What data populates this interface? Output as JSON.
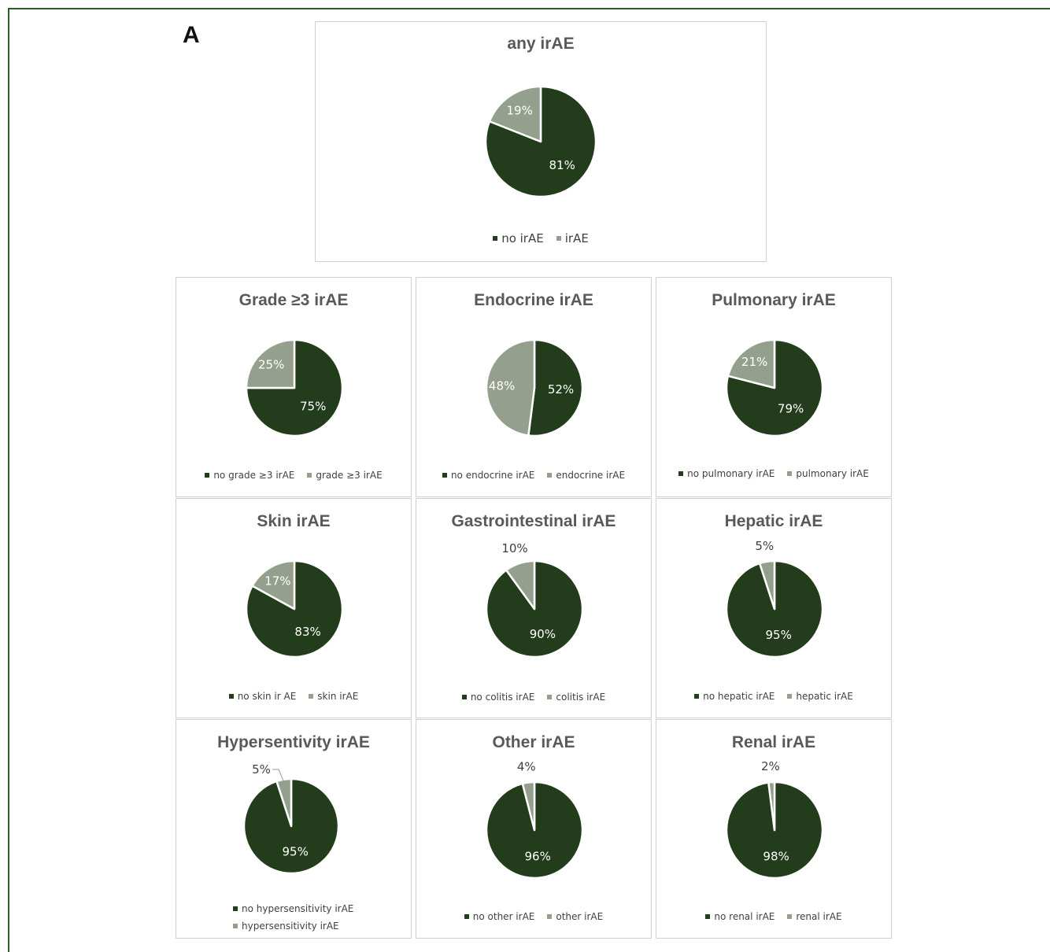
{
  "figure": {
    "panel_letter": "A"
  },
  "colors": {
    "primary": "#233d1c",
    "secondary": "#959f8e"
  },
  "chart_data": [
    {
      "type": "pie",
      "title": "any irAE",
      "labels": [
        "no irAE",
        "irAE"
      ],
      "values": [
        81,
        19
      ],
      "data_labels": [
        "81%",
        "19%"
      ],
      "legend": "bottom"
    },
    {
      "type": "pie",
      "title": "Grade ≥3 irAE",
      "labels": [
        "no grade ≥3 irAE",
        "grade ≥3 irAE"
      ],
      "values": [
        75,
        25
      ],
      "data_labels": [
        "75%",
        "25%"
      ],
      "legend": "bottom"
    },
    {
      "type": "pie",
      "title": "Endocrine irAE",
      "labels": [
        "no endocrine irAE",
        "endocrine irAE"
      ],
      "values": [
        52,
        48
      ],
      "data_labels": [
        "52%",
        "48%"
      ],
      "legend": "bottom"
    },
    {
      "type": "pie",
      "title": "Pulmonary irAE",
      "labels": [
        "no pulmonary irAE",
        "pulmonary irAE"
      ],
      "values": [
        79,
        21
      ],
      "data_labels": [
        "79%",
        "21%"
      ],
      "legend": "bottom"
    },
    {
      "type": "pie",
      "title": "Skin irAE",
      "labels": [
        "no skin ir AE",
        "skin irAE"
      ],
      "values": [
        83,
        17
      ],
      "data_labels": [
        "83%",
        "17%"
      ],
      "legend": "bottom"
    },
    {
      "type": "pie",
      "title": "Gastrointestinal irAE",
      "labels": [
        "no colitis irAE",
        "colitis irAE"
      ],
      "values": [
        90,
        10
      ],
      "data_labels": [
        "90%",
        "10%"
      ],
      "legend": "bottom"
    },
    {
      "type": "pie",
      "title": "Hepatic irAE",
      "labels": [
        "no hepatic irAE",
        "hepatic irAE"
      ],
      "values": [
        95,
        5
      ],
      "data_labels": [
        "95%",
        "5%"
      ],
      "legend": "bottom"
    },
    {
      "type": "pie",
      "title": "Hypersentivity irAE",
      "labels": [
        "no hypersensitivity irAE",
        "hypersensitivity irAE"
      ],
      "values": [
        95,
        5
      ],
      "data_labels": [
        "95%",
        "5%"
      ],
      "legend": "bottom"
    },
    {
      "type": "pie",
      "title": "Other irAE",
      "labels": [
        "no other irAE",
        "other irAE"
      ],
      "values": [
        96,
        4
      ],
      "data_labels": [
        "96%",
        "4%"
      ],
      "legend": "bottom"
    },
    {
      "type": "pie",
      "title": "Renal irAE",
      "labels": [
        "no renal irAE",
        "renal irAE"
      ],
      "values": [
        98,
        2
      ],
      "data_labels": [
        "98%",
        "2%"
      ],
      "legend": "bottom"
    }
  ]
}
